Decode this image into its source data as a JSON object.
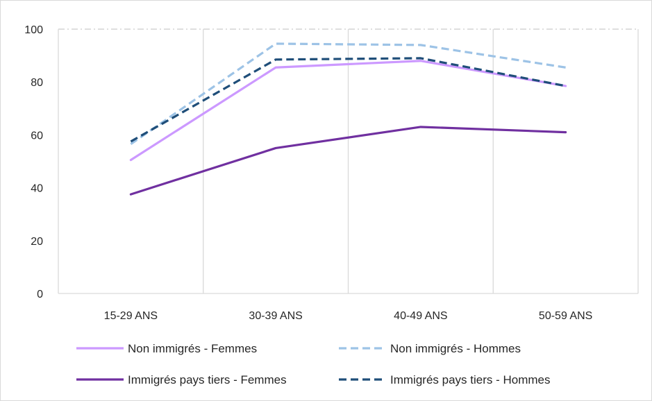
{
  "chart_data": {
    "type": "line",
    "title": "",
    "xlabel": "",
    "ylabel": "",
    "categories": [
      "15-29 ANS",
      "30-39 ANS",
      "40-49 ANS",
      "50-59 ANS"
    ],
    "ylim": [
      0,
      100
    ],
    "yticks": [
      "0",
      "20",
      "40",
      "60",
      "80",
      "100"
    ],
    "grid": "vertical category separators and dash-dot top line",
    "legend_position": "bottom",
    "series": [
      {
        "name": "Non immigrés - Femmes",
        "values": [
          50.5,
          85.5,
          88.0,
          78.5
        ],
        "color": "#cc99ff",
        "dash": "solid"
      },
      {
        "name": "Non immigrés - Hommes",
        "values": [
          56.5,
          94.5,
          94.0,
          85.5
        ],
        "color": "#9dc3e6",
        "dash": "dashed"
      },
      {
        "name": "Immigrés pays tiers - Femmes",
        "values": [
          37.5,
          55.0,
          63.0,
          61.0
        ],
        "color": "#7030a0",
        "dash": "solid"
      },
      {
        "name": "Immigrés pays tiers - Hommes",
        "values": [
          57.5,
          88.5,
          89.0,
          78.5
        ],
        "color": "#1f4e79",
        "dash": "dashed"
      }
    ]
  }
}
